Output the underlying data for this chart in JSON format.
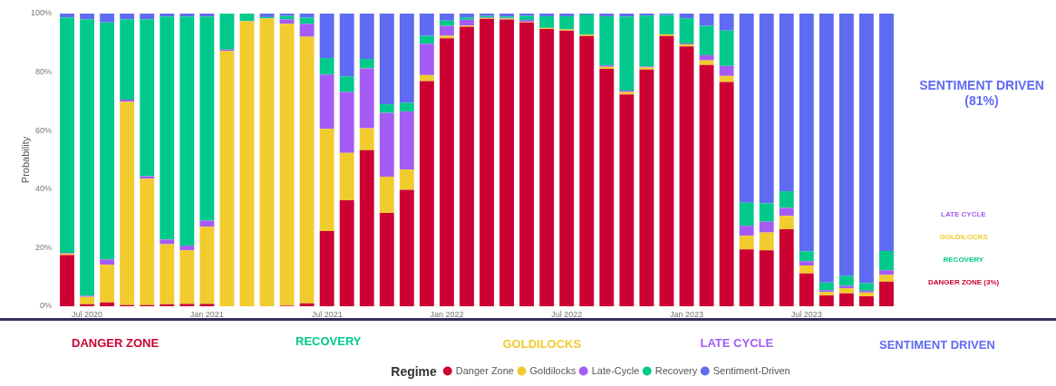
{
  "chart_data": {
    "type": "bar",
    "stacked": true,
    "ylabel": "Probability",
    "legend": "bottom",
    "legend_title": "Regime",
    "categories": [
      null,
      "Jul 2020",
      null,
      null,
      null,
      null,
      null,
      "Jan 2021",
      null,
      null,
      null,
      null,
      null,
      "Jul 2021",
      null,
      null,
      null,
      null,
      null,
      "Jan 2022",
      null,
      null,
      null,
      null,
      null,
      "Jul 2022",
      null,
      null,
      null,
      null,
      null,
      "Jan 2023",
      null,
      null,
      null,
      null,
      null,
      "Jul 2023",
      null,
      null,
      null,
      null
    ],
    "ylim": [
      0,
      100
    ],
    "yticks": [
      {
        "value": 0,
        "label": "0%"
      },
      {
        "value": 20,
        "label": "20%"
      },
      {
        "value": 40,
        "label": "40%"
      },
      {
        "value": 60,
        "label": "60%"
      },
      {
        "value": 80,
        "label": "80%"
      },
      {
        "value": 100,
        "label": "100%"
      }
    ],
    "series": [
      {
        "name": "Danger Zone",
        "color": "#cc0033",
        "values": [
          17.5,
          0.7,
          1.3,
          0.4,
          0.4,
          0.7,
          0.8,
          0.8,
          0,
          0,
          0,
          0.2,
          1,
          25.7,
          36.2,
          53.3,
          31.9,
          39.8,
          76.9,
          91.6,
          95.5,
          98.2,
          98,
          97,
          94.7,
          94.2,
          92.3,
          81.1,
          72.4,
          80.9,
          92.3,
          88.8,
          82.4,
          76.6,
          19.4,
          19.1,
          26.3,
          11.2,
          3.7,
          4.4,
          3.4,
          8.4
        ]
      },
      {
        "name": "Goldilocks",
        "color": "#f2cb2e",
        "values": [
          0.5,
          2.5,
          12.9,
          69.5,
          43.2,
          20.5,
          18.3,
          26.4,
          87.2,
          97.4,
          98.4,
          96.3,
          91.1,
          34.9,
          16.2,
          7.5,
          12.4,
          6.9,
          2.1,
          0.8,
          0.4,
          0.3,
          0.3,
          0.2,
          0.4,
          0.4,
          0.5,
          0.7,
          0.8,
          0.7,
          0.6,
          0.7,
          1.6,
          2.1,
          4.7,
          6.1,
          4.6,
          2.7,
          1.2,
          1.8,
          1.3,
          2.3
        ]
      },
      {
        "name": "Late-Cycle",
        "color": "#a45cf4",
        "values": [
          0.2,
          0.4,
          1.8,
          0.7,
          0.8,
          1.6,
          1.6,
          2.1,
          0.5,
          0,
          0,
          1.5,
          4.4,
          18.6,
          20.8,
          20.5,
          21.8,
          19.9,
          10.7,
          3.4,
          2,
          0.2,
          0.2,
          0.6,
          0,
          0,
          0,
          0.5,
          0.5,
          0.3,
          0,
          0.3,
          1.8,
          3.4,
          3.4,
          3.7,
          2.7,
          1.5,
          0.6,
          0.8,
          0.6,
          1.6
        ]
      },
      {
        "name": "Recovery",
        "color": "#00c98b",
        "values": [
          80.5,
          94.5,
          81,
          27.5,
          53.7,
          76.2,
          78.3,
          69.7,
          12.3,
          2.6,
          0.4,
          1.2,
          2.1,
          5.6,
          5.3,
          3.2,
          2.9,
          2.9,
          2.7,
          1.8,
          0.8,
          0.5,
          0.5,
          1.4,
          4,
          4.5,
          6.9,
          16.8,
          25.3,
          17.4,
          6.6,
          8.6,
          10,
          12.1,
          7.9,
          6.3,
          5.7,
          3.4,
          2.6,
          3.4,
          2.6,
          6.6
        ]
      },
      {
        "name": "Sentiment-Driven",
        "color": "#5f6bf3",
        "values": [
          1.3,
          1.9,
          3,
          1.9,
          1.9,
          1,
          1,
          1,
          0,
          0,
          1.2,
          0.8,
          1.4,
          15.2,
          21.5,
          15.5,
          31,
          30.5,
          7.6,
          2.4,
          1.3,
          0.8,
          1,
          0.8,
          0.9,
          0.9,
          0.3,
          0.9,
          1,
          0.7,
          0.5,
          1.6,
          4.2,
          5.8,
          64.6,
          64.8,
          60.7,
          81.2,
          91.9,
          89.6,
          92.1,
          81.1
        ]
      }
    ],
    "annotations": [
      "SENTIMENT DRIVEN (81%)",
      "LATE CYCLE",
      "GOLDILOCKS",
      "RECOVERY",
      "DANGER ZONE (3%)",
      "DANGER ZONE",
      "RECOVERY",
      "GOLDILOCKS",
      "LATE CYCLE",
      "SENTIMENT DRIVEN"
    ]
  }
}
